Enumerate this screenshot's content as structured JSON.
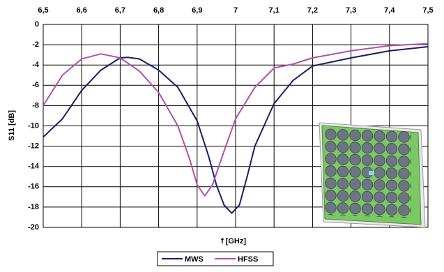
{
  "chart_data": {
    "type": "line",
    "x_label": "f [GHz]",
    "y_label": "S11 [dB]",
    "xlim": [
      6.5,
      7.5
    ],
    "xticks": [
      {
        "value": 6.5,
        "label": "6,5"
      },
      {
        "value": 6.6,
        "label": "6,6"
      },
      {
        "value": 6.7,
        "label": "6,7"
      },
      {
        "value": 6.8,
        "label": "6,8"
      },
      {
        "value": 6.9,
        "label": "6,9"
      },
      7,
      {
        "value": 7.1,
        "label": "7,1"
      },
      {
        "value": 7.2,
        "label": "7,2"
      },
      {
        "value": 7.3,
        "label": "7,3"
      },
      {
        "value": 7.4,
        "label": "7,4"
      },
      {
        "value": 7.5,
        "label": "7,5"
      }
    ],
    "ylim": [
      -20,
      0
    ],
    "yticks": [
      0,
      -2,
      -4,
      -6,
      -8,
      -10,
      -12,
      -14,
      -16,
      -18,
      -20
    ],
    "grid": true,
    "series": [
      {
        "name": "MWS",
        "color": "#1c1c6b",
        "x": [
          6.5,
          6.55,
          6.6,
          6.65,
          6.7,
          6.72,
          6.75,
          6.8,
          6.85,
          6.9,
          6.93,
          6.95,
          6.97,
          6.99,
          7.01,
          7.03,
          7.05,
          7.1,
          7.15,
          7.2,
          7.3,
          7.4,
          7.5
        ],
        "values": [
          -11.1,
          -9.3,
          -6.5,
          -4.5,
          -3.3,
          -3.25,
          -3.4,
          -4.5,
          -6.2,
          -9.5,
          -13.0,
          -15.8,
          -17.8,
          -18.6,
          -17.8,
          -15.0,
          -12.0,
          -7.8,
          -5.5,
          -4.1,
          -3.3,
          -2.6,
          -2.2
        ]
      },
      {
        "name": "HFSS",
        "color": "#b050b0",
        "x": [
          6.5,
          6.55,
          6.6,
          6.65,
          6.7,
          6.75,
          6.8,
          6.85,
          6.88,
          6.9,
          6.92,
          6.94,
          6.97,
          7.0,
          7.05,
          7.1,
          7.15,
          7.2,
          7.3,
          7.4,
          7.5
        ],
        "values": [
          -8.0,
          -5.0,
          -3.4,
          -2.9,
          -3.3,
          -4.6,
          -6.7,
          -10.0,
          -13.2,
          -15.8,
          -16.9,
          -15.8,
          -12.5,
          -9.3,
          -6.2,
          -4.3,
          -3.9,
          -3.3,
          -2.6,
          -2.1,
          -1.9
        ]
      }
    ]
  }
}
